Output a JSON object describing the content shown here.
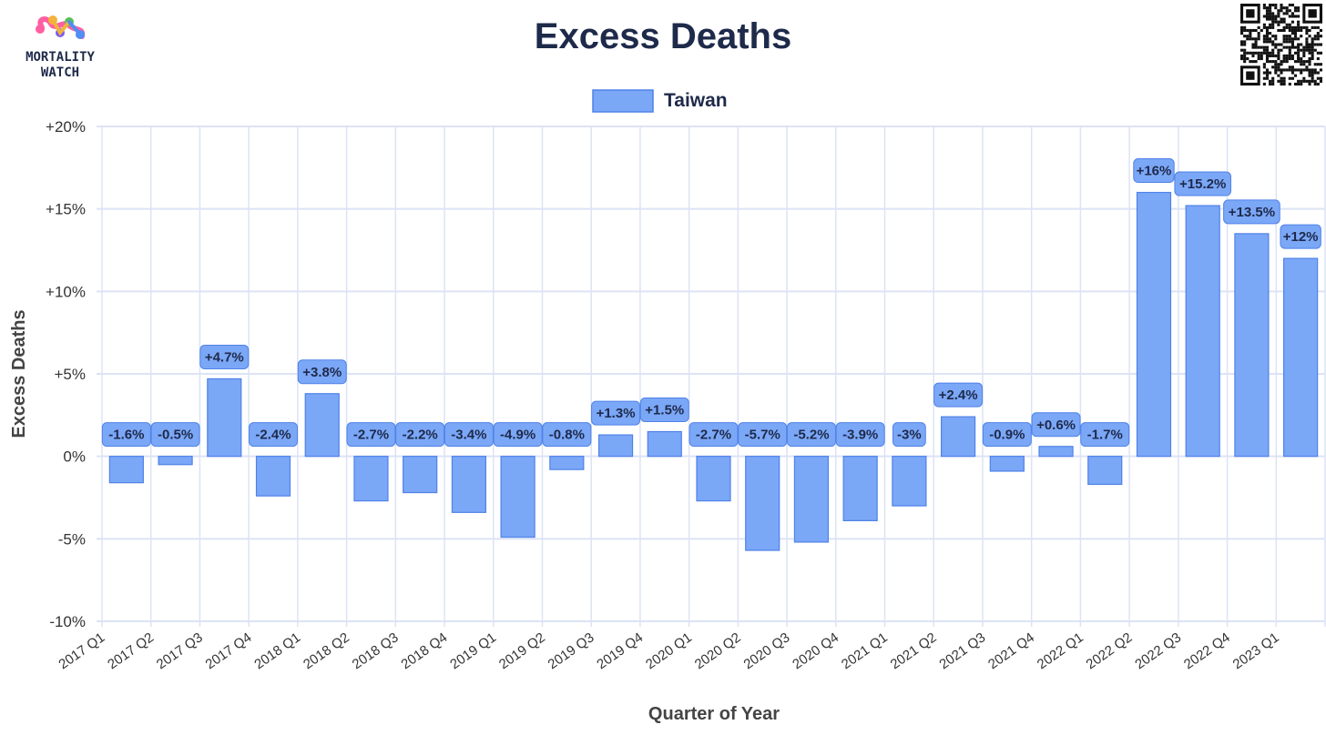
{
  "brand": {
    "logo_line1": "MORTALITY",
    "logo_line2": "WATCH"
  },
  "chart_data": {
    "type": "bar",
    "title": "Excess Deaths",
    "xlabel": "Quarter of Year",
    "ylabel": "Excess Deaths",
    "ylim": [
      -10,
      20
    ],
    "yticks": [
      -10,
      -5,
      0,
      5,
      10,
      15,
      20
    ],
    "ytick_labels": [
      "-10%",
      "-5%",
      "0%",
      "+5%",
      "+10%",
      "+15%",
      "+20%"
    ],
    "grid": true,
    "legend": "top-center",
    "categories": [
      "2017 Q1",
      "2017 Q2",
      "2017 Q3",
      "2017 Q4",
      "2018 Q1",
      "2018 Q2",
      "2018 Q3",
      "2018 Q4",
      "2019 Q1",
      "2019 Q2",
      "2019 Q3",
      "2019 Q4",
      "2020 Q1",
      "2020 Q2",
      "2020 Q3",
      "2020 Q4",
      "2021 Q1",
      "2021 Q2",
      "2021 Q3",
      "2021 Q4",
      "2022 Q1",
      "2022 Q2",
      "2022 Q3",
      "2022 Q4",
      "2023 Q1"
    ],
    "series": [
      {
        "name": "Taiwan",
        "color": "#7ba7f7",
        "values": [
          -1.6,
          -0.5,
          4.7,
          -2.4,
          3.8,
          -2.7,
          -2.2,
          -3.4,
          -4.9,
          -0.8,
          1.3,
          1.5,
          -2.7,
          -5.7,
          -5.2,
          -3.9,
          -3.0,
          2.4,
          -0.9,
          0.6,
          -1.7,
          16.0,
          15.2,
          13.5,
          12.0
        ],
        "labels": [
          "-1.6%",
          "-0.5%",
          "+4.7%",
          "-2.4%",
          "+3.8%",
          "-2.7%",
          "-2.2%",
          "-3.4%",
          "-4.9%",
          "-0.8%",
          "+1.3%",
          "+1.5%",
          "-2.7%",
          "-5.7%",
          "-5.2%",
          "-3.9%",
          "-3%",
          "+2.4%",
          "-0.9%",
          "+0.6%",
          "-1.7%",
          "+16%",
          "+15.2%",
          "+13.5%",
          "+12%"
        ]
      }
    ],
    "colors": {
      "bar_fill": "#7ba7f7",
      "bar_stroke": "#4f82e8",
      "label_bg": "#7ba7f7",
      "grid": "#dde3f5",
      "zero_line": "#dde3f5"
    }
  }
}
